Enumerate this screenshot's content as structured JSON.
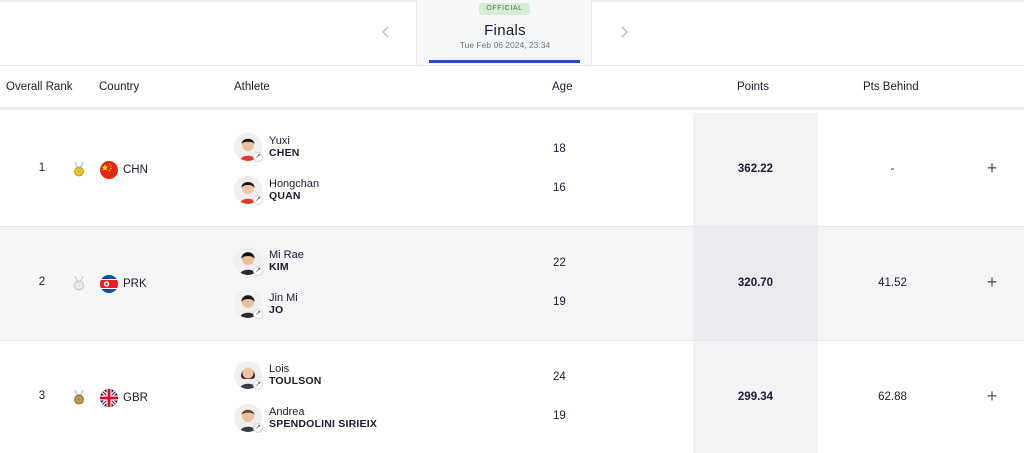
{
  "header": {
    "badge": "OFFICIAL",
    "phase_title": "Finals",
    "phase_date": "Tue Feb 06 2024, 23:34",
    "prev_icon": "chevron-left-icon",
    "next_icon": "chevron-right-icon"
  },
  "columns": {
    "rank": "Overall Rank",
    "country": "Country",
    "athlete": "Athlete",
    "age": "Age",
    "points": "Points",
    "behind": "Pts Behind"
  },
  "rows": [
    {
      "rank": "1",
      "medal": "gold",
      "country": "CHN",
      "athletes": [
        {
          "given": "Yuxi",
          "family": "CHEN",
          "age": "18"
        },
        {
          "given": "Hongchan",
          "family": "QUAN",
          "age": "16"
        }
      ],
      "points": "362.22",
      "behind": "-"
    },
    {
      "rank": "2",
      "medal": "silver",
      "country": "PRK",
      "athletes": [
        {
          "given": "Mi Rae",
          "family": "KIM",
          "age": "22"
        },
        {
          "given": "Jin Mi",
          "family": "JO",
          "age": "19"
        }
      ],
      "points": "320.70",
      "behind": "41.52"
    },
    {
      "rank": "3",
      "medal": "bronze",
      "country": "GBR",
      "athletes": [
        {
          "given": "Lois",
          "family": "TOULSON",
          "age": "24"
        },
        {
          "given": "Andrea",
          "family": "SPENDOLINI SIRIEIX",
          "age": "19"
        }
      ],
      "points": "299.34",
      "behind": "62.88"
    }
  ],
  "icons": {
    "expand": "+",
    "avatar_arrow": "↗"
  },
  "colors": {
    "accent": "#2d4db8",
    "badge_bg": "#d7ecd7",
    "badge_text": "#3f7d42",
    "gold": "#e0b52a",
    "silver": "#c9cbd0",
    "bronze": "#b08a46"
  }
}
